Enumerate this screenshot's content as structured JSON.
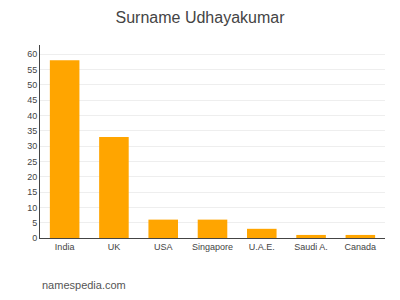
{
  "chart_data": {
    "type": "bar",
    "title": "Surname Udhayakumar",
    "categories": [
      "India",
      "UK",
      "USA",
      "Singapore",
      "U.A.E.",
      "Saudi A.",
      "Canada"
    ],
    "values": [
      58,
      33,
      6,
      6,
      3,
      1,
      1
    ],
    "color": "#FFA500",
    "ylim": [
      0,
      63
    ],
    "yticks": [
      0,
      5,
      10,
      15,
      20,
      25,
      30,
      35,
      40,
      45,
      50,
      55,
      60
    ],
    "grid": true,
    "annotations": [
      "namespedia.com"
    ]
  }
}
